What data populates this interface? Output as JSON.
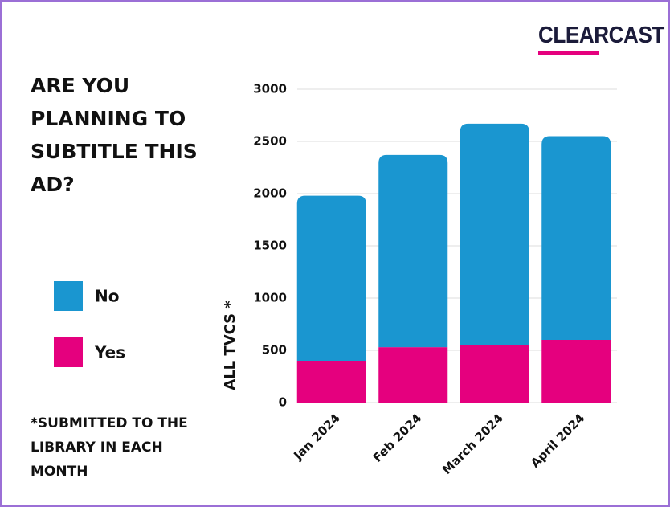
{
  "chart_data": {
    "type": "stacked-bar",
    "title": "ARE YOU PLANNING TO SUBTITLE THIS AD?",
    "brand": "CLEARCAST",
    "y_label": "ALL TVCS *",
    "footnote": "*SUBMITTED TO THE LIBRARY IN EACH MONTH",
    "categories": [
      "Jan 2024",
      "Feb 2024",
      "March 2024",
      "April 2024"
    ],
    "series": [
      {
        "name": "Yes",
        "color": "#e5007e",
        "values": [
          400,
          530,
          550,
          600
        ]
      },
      {
        "name": "No",
        "color": "#1a96d0",
        "values": [
          1580,
          1840,
          2120,
          1950
        ]
      }
    ],
    "ylim": [
      0,
      3000
    ],
    "yticks": [
      0,
      500,
      1000,
      1500,
      2000,
      2500,
      3000
    ],
    "grid": true
  }
}
